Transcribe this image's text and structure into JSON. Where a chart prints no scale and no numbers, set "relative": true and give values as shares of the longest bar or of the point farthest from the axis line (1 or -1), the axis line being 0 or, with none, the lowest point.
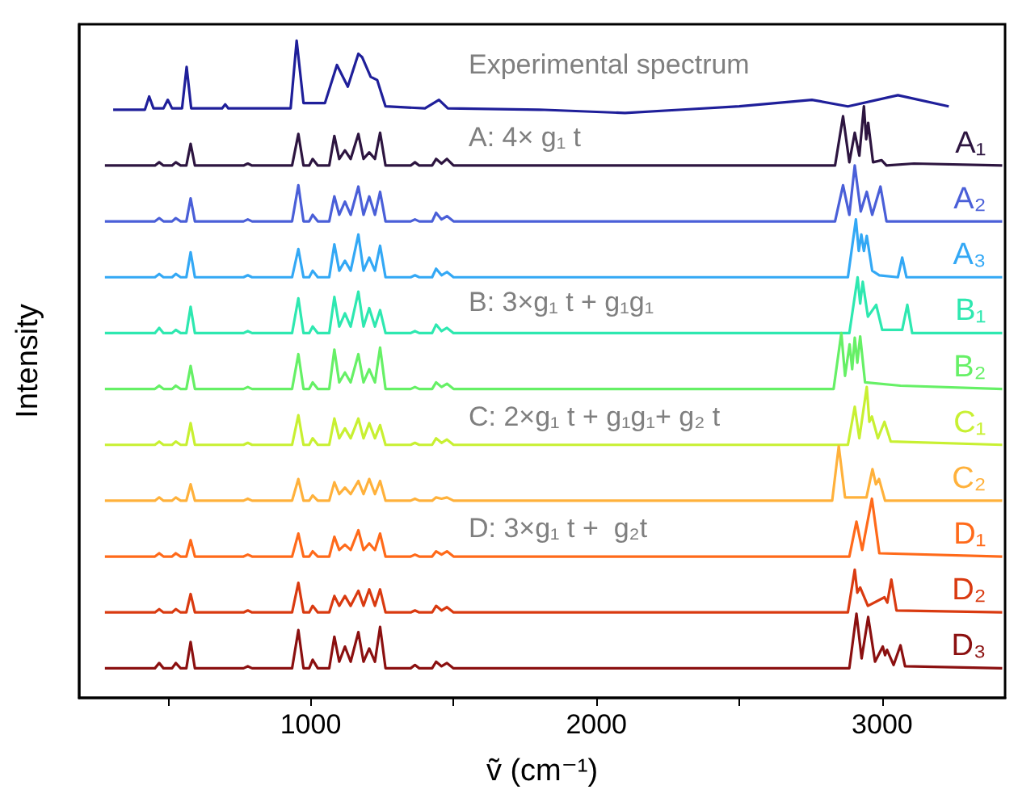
{
  "chart_data": {
    "type": "line",
    "relative": true,
    "xlabel": "ṽ (cm⁻¹)",
    "ylabel": "Intensity",
    "xlim": [
      190,
      3430
    ],
    "xticks": [
      {
        "value": 500,
        "label": null
      },
      1000,
      {
        "value": 1500,
        "label": null
      },
      2000,
      {
        "value": 2500,
        "label": null
      },
      3000
    ],
    "tick_labels": "x",
    "legend": false,
    "grid": false,
    "annotations": [
      "Experimental spectrum",
      "A: 4× g₁ t",
      "B: 3×g₁ t + g₁g₁",
      "C: 2×g₁ t + g₁g₁+ g₂ t",
      "D: 3×g₁ t +  g₂t"
    ],
    "series": [
      {
        "color": "#1f1f9a",
        "x": [
          309,
          420,
          435,
          450,
          485,
          500,
          515,
          550,
          566,
          582,
          690,
          701,
          712,
          930,
          951,
          975,
          1050,
          1092,
          1130,
          1167,
          1180,
          1210,
          1233,
          1262,
          1400,
          1449,
          1480,
          1800,
          2100,
          2300,
          2500,
          2754,
          2880,
          3055,
          3233
        ],
        "values": [
          0.895,
          0.895,
          0.915,
          0.897,
          0.897,
          0.91,
          0.897,
          0.897,
          0.96,
          0.897,
          0.897,
          0.903,
          0.897,
          0.897,
          1.0,
          0.905,
          0.905,
          0.963,
          0.93,
          0.98,
          0.975,
          0.945,
          0.94,
          0.9,
          0.897,
          0.91,
          0.897,
          0.895,
          0.89,
          0.895,
          0.9,
          0.91,
          0.9,
          0.917,
          0.9
        ]
      },
      {
        "name": "A₁",
        "color": "#2d1540",
        "x": [
          280,
          455,
          470,
          485,
          515,
          528,
          545,
          565,
          580,
          595,
          765,
          780,
          795,
          935,
          957,
          975,
          995,
          1007,
          1025,
          1065,
          1083,
          1100,
          1120,
          1140,
          1167,
          1185,
          1205,
          1225,
          1243,
          1262,
          1350,
          1365,
          1380,
          1425,
          1439,
          1458,
          1477,
          1500,
          2835,
          2863,
          2885,
          2904,
          2920,
          2936,
          2944,
          2951,
          2968,
          2998,
          3015,
          3111,
          3420
        ],
        "values": [
          0.81,
          0.81,
          0.815,
          0.81,
          0.81,
          0.815,
          0.81,
          0.81,
          0.843,
          0.81,
          0.81,
          0.813,
          0.81,
          0.81,
          0.858,
          0.81,
          0.81,
          0.82,
          0.81,
          0.81,
          0.855,
          0.82,
          0.833,
          0.82,
          0.858,
          0.82,
          0.83,
          0.82,
          0.86,
          0.81,
          0.81,
          0.815,
          0.81,
          0.81,
          0.82,
          0.813,
          0.82,
          0.81,
          0.81,
          0.885,
          0.815,
          0.86,
          0.825,
          0.9,
          0.85,
          0.875,
          0.815,
          0.818,
          0.81,
          0.813,
          0.81
        ]
      },
      {
        "name": "A₂",
        "color": "#4a5fd8",
        "x": [
          280,
          455,
          470,
          485,
          515,
          528,
          545,
          565,
          580,
          595,
          765,
          780,
          795,
          935,
          957,
          975,
          995,
          1007,
          1025,
          1065,
          1083,
          1100,
          1120,
          1140,
          1167,
          1185,
          1205,
          1225,
          1243,
          1262,
          1350,
          1365,
          1380,
          1425,
          1439,
          1458,
          1477,
          1500,
          2835,
          2863,
          2885,
          2904,
          2925,
          2946,
          2965,
          2994,
          3015,
          3420
        ],
        "values": [
          0.725,
          0.725,
          0.73,
          0.725,
          0.725,
          0.73,
          0.725,
          0.725,
          0.76,
          0.725,
          0.725,
          0.728,
          0.725,
          0.725,
          0.78,
          0.725,
          0.725,
          0.735,
          0.725,
          0.725,
          0.763,
          0.735,
          0.755,
          0.735,
          0.778,
          0.735,
          0.763,
          0.735,
          0.77,
          0.725,
          0.725,
          0.728,
          0.725,
          0.725,
          0.738,
          0.728,
          0.733,
          0.725,
          0.725,
          0.78,
          0.735,
          0.81,
          0.74,
          0.77,
          0.735,
          0.778,
          0.725,
          0.725
        ]
      },
      {
        "name": "A₃",
        "color": "#33a8f5",
        "x": [
          280,
          455,
          470,
          485,
          515,
          528,
          545,
          565,
          580,
          595,
          765,
          780,
          795,
          935,
          957,
          975,
          995,
          1007,
          1025,
          1065,
          1083,
          1100,
          1120,
          1140,
          1167,
          1185,
          1205,
          1225,
          1243,
          1262,
          1350,
          1365,
          1380,
          1425,
          1439,
          1458,
          1477,
          1500,
          2880,
          2908,
          2918,
          2927,
          2936,
          2946,
          2965,
          2990,
          3055,
          3070,
          3085,
          3420
        ],
        "values": [
          0.64,
          0.64,
          0.645,
          0.64,
          0.64,
          0.645,
          0.64,
          0.64,
          0.678,
          0.64,
          0.64,
          0.643,
          0.64,
          0.64,
          0.683,
          0.64,
          0.64,
          0.65,
          0.64,
          0.64,
          0.69,
          0.65,
          0.665,
          0.65,
          0.705,
          0.65,
          0.67,
          0.65,
          0.688,
          0.64,
          0.64,
          0.643,
          0.64,
          0.64,
          0.653,
          0.643,
          0.648,
          0.64,
          0.64,
          0.728,
          0.68,
          0.705,
          0.68,
          0.703,
          0.65,
          0.643,
          0.64,
          0.67,
          0.64,
          0.64
        ]
      },
      {
        "name": "B₁",
        "color": "#2ee8b0",
        "x": [
          280,
          455,
          470,
          485,
          515,
          528,
          545,
          565,
          580,
          595,
          765,
          780,
          795,
          935,
          957,
          975,
          995,
          1007,
          1025,
          1065,
          1083,
          1100,
          1120,
          1140,
          1167,
          1185,
          1205,
          1225,
          1243,
          1262,
          1350,
          1365,
          1380,
          1425,
          1439,
          1458,
          1477,
          1500,
          2885,
          2914,
          2923,
          2932,
          2950,
          2979,
          3000,
          3070,
          3088,
          3105,
          3420
        ],
        "values": [
          0.555,
          0.555,
          0.563,
          0.555,
          0.555,
          0.56,
          0.555,
          0.555,
          0.595,
          0.555,
          0.555,
          0.558,
          0.555,
          0.555,
          0.608,
          0.555,
          0.555,
          0.565,
          0.555,
          0.555,
          0.61,
          0.565,
          0.585,
          0.565,
          0.618,
          0.565,
          0.593,
          0.565,
          0.59,
          0.555,
          0.555,
          0.558,
          0.555,
          0.555,
          0.568,
          0.558,
          0.563,
          0.555,
          0.555,
          0.64,
          0.6,
          0.633,
          0.58,
          0.598,
          0.56,
          0.56,
          0.598,
          0.555,
          0.555
        ]
      },
      {
        "name": "B₂",
        "color": "#66f066",
        "x": [
          280,
          455,
          470,
          485,
          515,
          528,
          545,
          565,
          580,
          595,
          765,
          780,
          795,
          935,
          957,
          975,
          995,
          1007,
          1025,
          1065,
          1083,
          1100,
          1120,
          1140,
          1167,
          1185,
          1205,
          1225,
          1243,
          1262,
          1350,
          1365,
          1380,
          1425,
          1439,
          1458,
          1477,
          1500,
          2830,
          2857,
          2870,
          2886,
          2895,
          2904,
          2913,
          2923,
          2940,
          3064,
          3420
        ],
        "values": [
          0.47,
          0.47,
          0.475,
          0.47,
          0.47,
          0.475,
          0.47,
          0.47,
          0.505,
          0.47,
          0.47,
          0.473,
          0.47,
          0.47,
          0.523,
          0.47,
          0.47,
          0.48,
          0.47,
          0.47,
          0.53,
          0.48,
          0.495,
          0.48,
          0.523,
          0.48,
          0.5,
          0.48,
          0.533,
          0.47,
          0.47,
          0.473,
          0.47,
          0.47,
          0.48,
          0.473,
          0.478,
          0.47,
          0.47,
          0.555,
          0.49,
          0.538,
          0.5,
          0.548,
          0.51,
          0.55,
          0.48,
          0.475,
          0.47
        ]
      },
      {
        "name": "C₁",
        "color": "#c8f032",
        "x": [
          280,
          455,
          470,
          485,
          515,
          528,
          545,
          565,
          580,
          595,
          765,
          780,
          795,
          935,
          957,
          975,
          995,
          1007,
          1025,
          1065,
          1083,
          1100,
          1120,
          1140,
          1167,
          1185,
          1205,
          1225,
          1243,
          1262,
          1350,
          1365,
          1380,
          1425,
          1439,
          1458,
          1477,
          1500,
          2880,
          2904,
          2920,
          2946,
          2955,
          2964,
          2985,
          3008,
          3030,
          3420
        ],
        "values": [
          0.385,
          0.385,
          0.39,
          0.385,
          0.385,
          0.39,
          0.385,
          0.385,
          0.418,
          0.385,
          0.385,
          0.388,
          0.385,
          0.385,
          0.43,
          0.385,
          0.385,
          0.395,
          0.385,
          0.385,
          0.425,
          0.395,
          0.41,
          0.395,
          0.425,
          0.395,
          0.418,
          0.395,
          0.415,
          0.385,
          0.385,
          0.388,
          0.385,
          0.385,
          0.395,
          0.388,
          0.393,
          0.385,
          0.385,
          0.443,
          0.395,
          0.473,
          0.42,
          0.428,
          0.395,
          0.42,
          0.39,
          0.385
        ]
      },
      {
        "name": "C₂",
        "color": "#ffb13b",
        "x": [
          280,
          455,
          470,
          485,
          515,
          528,
          545,
          565,
          580,
          595,
          765,
          780,
          795,
          935,
          957,
          975,
          995,
          1007,
          1025,
          1065,
          1083,
          1100,
          1120,
          1140,
          1167,
          1185,
          1205,
          1225,
          1243,
          1262,
          1350,
          1365,
          1380,
          1425,
          1439,
          1458,
          1477,
          1500,
          2825,
          2848,
          2870,
          2945,
          2966,
          2978,
          2989,
          3010,
          3420
        ],
        "values": [
          0.3,
          0.3,
          0.305,
          0.3,
          0.3,
          0.305,
          0.3,
          0.3,
          0.325,
          0.3,
          0.3,
          0.303,
          0.3,
          0.3,
          0.333,
          0.3,
          0.3,
          0.308,
          0.3,
          0.3,
          0.328,
          0.31,
          0.32,
          0.31,
          0.33,
          0.31,
          0.333,
          0.31,
          0.33,
          0.3,
          0.3,
          0.303,
          0.3,
          0.3,
          0.305,
          0.303,
          0.305,
          0.3,
          0.3,
          0.383,
          0.305,
          0.305,
          0.348,
          0.325,
          0.333,
          0.3,
          0.3
        ]
      },
      {
        "name": "D₁",
        "color": "#ff6a1a",
        "x": [
          280,
          455,
          470,
          485,
          515,
          528,
          545,
          565,
          580,
          595,
          765,
          780,
          795,
          935,
          957,
          975,
          995,
          1007,
          1025,
          1065,
          1083,
          1100,
          1120,
          1140,
          1167,
          1185,
          1205,
          1225,
          1243,
          1262,
          1350,
          1365,
          1380,
          1425,
          1439,
          1458,
          1477,
          1500,
          2885,
          2910,
          2930,
          2964,
          2990,
          3420
        ],
        "values": [
          0.215,
          0.215,
          0.22,
          0.215,
          0.215,
          0.22,
          0.215,
          0.215,
          0.24,
          0.215,
          0.215,
          0.218,
          0.215,
          0.215,
          0.25,
          0.215,
          0.215,
          0.223,
          0.215,
          0.215,
          0.245,
          0.225,
          0.233,
          0.225,
          0.255,
          0.225,
          0.235,
          0.225,
          0.25,
          0.215,
          0.215,
          0.218,
          0.215,
          0.215,
          0.223,
          0.218,
          0.223,
          0.215,
          0.215,
          0.268,
          0.225,
          0.303,
          0.22,
          0.215
        ]
      },
      {
        "name": "D₂",
        "color": "#d93a10",
        "x": [
          280,
          455,
          470,
          485,
          515,
          528,
          545,
          565,
          580,
          595,
          765,
          780,
          795,
          935,
          957,
          975,
          995,
          1007,
          1025,
          1065,
          1083,
          1100,
          1120,
          1140,
          1167,
          1185,
          1205,
          1225,
          1243,
          1262,
          1350,
          1365,
          1380,
          1425,
          1439,
          1458,
          1477,
          1500,
          2880,
          2904,
          2913,
          2923,
          2950,
          3008,
          3018,
          3032,
          3050,
          3420
        ],
        "values": [
          0.13,
          0.13,
          0.135,
          0.13,
          0.13,
          0.135,
          0.13,
          0.13,
          0.158,
          0.13,
          0.13,
          0.133,
          0.13,
          0.13,
          0.175,
          0.13,
          0.13,
          0.14,
          0.13,
          0.13,
          0.155,
          0.14,
          0.155,
          0.14,
          0.163,
          0.14,
          0.165,
          0.14,
          0.165,
          0.13,
          0.13,
          0.133,
          0.13,
          0.13,
          0.14,
          0.133,
          0.138,
          0.13,
          0.13,
          0.195,
          0.16,
          0.168,
          0.14,
          0.153,
          0.145,
          0.18,
          0.133,
          0.13
        ]
      },
      {
        "name": "D₃",
        "color": "#8b1010",
        "x": [
          280,
          455,
          470,
          485,
          515,
          528,
          545,
          565,
          580,
          595,
          765,
          780,
          795,
          935,
          957,
          975,
          995,
          1007,
          1025,
          1065,
          1083,
          1100,
          1120,
          1140,
          1167,
          1185,
          1205,
          1225,
          1243,
          1262,
          1350,
          1365,
          1380,
          1425,
          1439,
          1458,
          1477,
          1500,
          2885,
          2910,
          2928,
          2951,
          2975,
          3002,
          3010,
          3017,
          3040,
          3064,
          3080,
          3420
        ],
        "values": [
          0.045,
          0.045,
          0.053,
          0.045,
          0.045,
          0.053,
          0.045,
          0.045,
          0.085,
          0.045,
          0.045,
          0.048,
          0.045,
          0.045,
          0.103,
          0.045,
          0.045,
          0.058,
          0.045,
          0.045,
          0.093,
          0.055,
          0.078,
          0.055,
          0.1,
          0.055,
          0.075,
          0.055,
          0.108,
          0.045,
          0.045,
          0.05,
          0.045,
          0.045,
          0.055,
          0.048,
          0.053,
          0.045,
          0.045,
          0.128,
          0.06,
          0.123,
          0.055,
          0.078,
          0.065,
          0.073,
          0.05,
          0.08,
          0.048,
          0.045
        ]
      }
    ]
  }
}
